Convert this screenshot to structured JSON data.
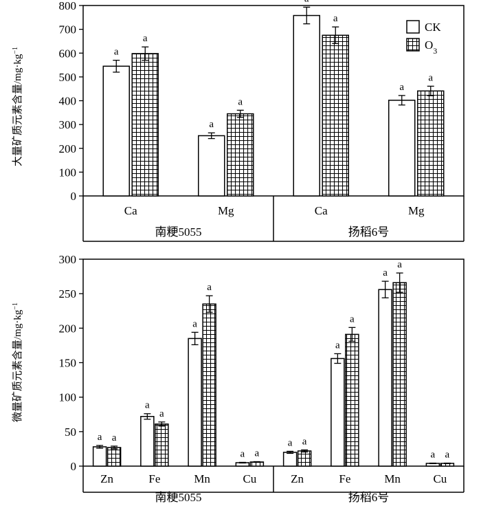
{
  "legend": {
    "ck": "CK",
    "o3": "O",
    "o3_sub": "3"
  },
  "chart_data": [
    {
      "type": "bar",
      "ylabel": "大量矿质元素含量/mg·kg",
      "ylabel_sup": "−1",
      "ylim": [
        0,
        800
      ],
      "yticks": [
        0,
        100,
        200,
        300,
        400,
        500,
        600,
        700,
        800
      ],
      "categories": [
        "Ca",
        "Mg",
        "Ca",
        "Mg"
      ],
      "groups": [
        "南粳5055",
        "扬稻6号"
      ],
      "series": [
        {
          "name": "CK",
          "values": [
            545,
            253,
            758,
            402
          ],
          "errors": [
            25,
            12,
            35,
            20
          ],
          "labels": [
            "a",
            "a",
            "a",
            "a"
          ]
        },
        {
          "name": "O3",
          "values": [
            598,
            345,
            675,
            441
          ],
          "errors": [
            28,
            15,
            35,
            20
          ],
          "labels": [
            "a",
            "a",
            "a",
            "a"
          ]
        }
      ],
      "grid": false,
      "legend_position": "top-right"
    },
    {
      "type": "bar",
      "ylabel": "微量矿质元素含量/mg·kg",
      "ylabel_sup": "−1",
      "ylim": [
        0,
        300
      ],
      "yticks": [
        0,
        50,
        100,
        150,
        200,
        250,
        300
      ],
      "categories": [
        "Zn",
        "Fe",
        "Mn",
        "Cu",
        "Zn",
        "Fe",
        "Mn",
        "Cu"
      ],
      "groups": [
        "南粳5055",
        "扬稻6号"
      ],
      "series": [
        {
          "name": "CK",
          "values": [
            28,
            72,
            185,
            5,
            20,
            156,
            256,
            4
          ],
          "errors": [
            2,
            4,
            9,
            0.5,
            1.5,
            7,
            12,
            0.4
          ],
          "labels": [
            "a",
            "a",
            "a",
            "a",
            "a",
            "a",
            "a",
            "a"
          ]
        },
        {
          "name": "O3",
          "values": [
            27,
            61,
            235,
            6,
            22,
            191,
            266,
            4
          ],
          "errors": [
            2,
            3,
            12,
            0.5,
            1.5,
            10,
            14,
            0.4
          ],
          "labels": [
            "a",
            "a",
            "a",
            "a",
            "a",
            "a",
            "a",
            "a"
          ]
        }
      ],
      "grid": false
    }
  ]
}
